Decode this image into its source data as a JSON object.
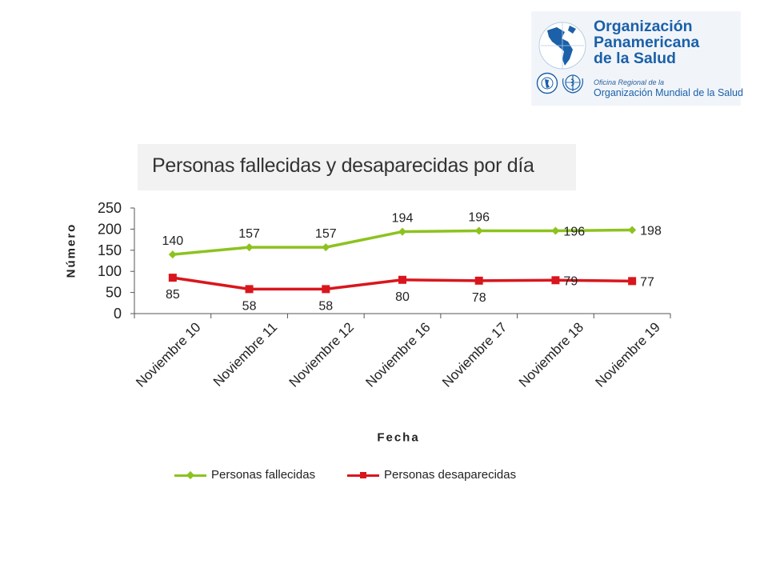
{
  "logo": {
    "line1": "Organización",
    "line2": "Panamericana",
    "line3": "de la Salud",
    "sub1": "Oficina Regional de la",
    "sub2": "Organización Mundial de la Salud",
    "brand_color": "#1b60a8"
  },
  "chart_data": {
    "type": "line",
    "title": "Personas fallecidas y desaparecidas por día",
    "xlabel": "Fecha",
    "ylabel": "Número",
    "categories": [
      "Noviembre 10",
      "Noviembre 11",
      "Noviembre 12",
      "Noviembre 16",
      "Noviembre 17",
      "Noviembre 18",
      "Noviembre 19"
    ],
    "ylim": [
      0,
      250
    ],
    "yticks": [
      0,
      50,
      100,
      150,
      200,
      250
    ],
    "grid": false,
    "legend_position": "bottom",
    "series": [
      {
        "name": "Personas fallecidas",
        "values": [
          140,
          157,
          157,
          194,
          196,
          196,
          198
        ],
        "color": "#8dc21f",
        "marker": "diamond",
        "label_position": "above"
      },
      {
        "name": "Personas desaparecidas",
        "values": [
          85,
          58,
          58,
          80,
          78,
          79,
          77
        ],
        "color": "#d9161d",
        "marker": "square",
        "label_position": "below"
      }
    ]
  }
}
